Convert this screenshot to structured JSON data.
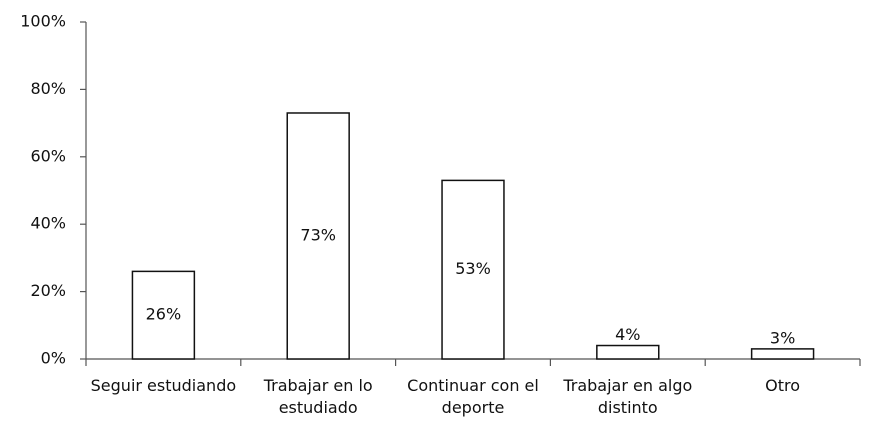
{
  "chart_data": {
    "type": "bar",
    "categories": [
      "Seguir estudiando",
      "Trabajar en lo estudiado",
      "Continuar con el deporte",
      "Trabajar en algo distinto",
      "Otro"
    ],
    "values": [
      26,
      73,
      53,
      4,
      3
    ],
    "value_labels": [
      "26%",
      "73%",
      "53%",
      "4%",
      "3%"
    ],
    "color": "#ffffff",
    "ylim": [
      0,
      100
    ],
    "yticks": [
      {
        "value": 0,
        "label": "0%"
      },
      {
        "value": 20,
        "label": "20%"
      },
      {
        "value": 40,
        "label": "40%"
      },
      {
        "value": 60,
        "label": "60%"
      },
      {
        "value": 80,
        "label": "80%"
      },
      {
        "value": 100,
        "label": "100%"
      }
    ],
    "grid": false
  }
}
